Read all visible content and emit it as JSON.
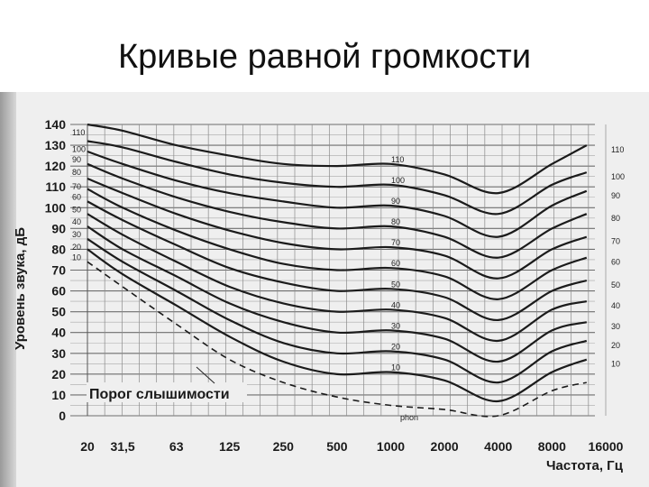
{
  "slide": {
    "title": "Кривые равной громкости"
  },
  "chart_data": {
    "type": "line",
    "title": "",
    "ylabel": "Уровень звука, дБ",
    "xlabel": "Частота, Гц",
    "x_scale": "log",
    "x_ticks": [
      20,
      31.5,
      63,
      125,
      250,
      500,
      1000,
      2000,
      4000,
      8000,
      16000
    ],
    "x_tick_labels": [
      "20",
      "31,5",
      "63",
      "125",
      "250",
      "500",
      "1000",
      "2000",
      "4000",
      "8000",
      "16000"
    ],
    "y_ticks": [
      0,
      10,
      20,
      30,
      40,
      50,
      60,
      70,
      80,
      90,
      100,
      110,
      120,
      130,
      140
    ],
    "y_tick_labels": [
      "0",
      "10",
      "20",
      "30",
      "40",
      "50",
      "60",
      "70",
      "80",
      "90",
      "100",
      "110",
      "120",
      "130",
      "140"
    ],
    "ylim": [
      0,
      140
    ],
    "grid": true,
    "threshold_label": "Порог слышимости",
    "unit_label": "phon",
    "x": [
      20,
      31.5,
      63,
      125,
      250,
      500,
      1000,
      2000,
      4000,
      8000,
      12500
    ],
    "series": [
      {
        "name": "110",
        "values": [
          140,
          137,
          130,
          125,
          121,
          120,
          121,
          116,
          107,
          121,
          130
        ]
      },
      {
        "name": "100",
        "values": [
          132,
          129,
          122,
          116,
          112,
          110,
          111,
          106,
          97,
          111,
          117
        ]
      },
      {
        "name": "90",
        "values": [
          127,
          121,
          113,
          107,
          103,
          100,
          101,
          96,
          86,
          101,
          108
        ]
      },
      {
        "name": "80",
        "values": [
          121,
          114,
          105,
          98,
          93,
          90,
          91,
          86,
          76,
          90,
          97
        ]
      },
      {
        "name": "70",
        "values": [
          114,
          107,
          97,
          89,
          83,
          80,
          81,
          77,
          66,
          80,
          86
        ]
      },
      {
        "name": "60",
        "values": [
          109,
          100,
          89,
          80,
          73,
          70,
          71,
          67,
          56,
          70,
          76
        ]
      },
      {
        "name": "50",
        "values": [
          103,
          94,
          82,
          71,
          64,
          60,
          61,
          57,
          46,
          60,
          65
        ]
      },
      {
        "name": "40",
        "values": [
          97,
          87,
          74,
          62,
          54,
          50,
          51,
          47,
          36,
          51,
          55
        ]
      },
      {
        "name": "30",
        "values": [
          91,
          80,
          67,
          54,
          45,
          40,
          41,
          37,
          26,
          41,
          45
        ]
      },
      {
        "name": "20",
        "values": [
          85,
          74,
          60,
          46,
          35,
          30,
          31,
          27,
          16,
          31,
          36
        ]
      },
      {
        "name": "10",
        "values": [
          80,
          68,
          53,
          38,
          26,
          20,
          21,
          17,
          7,
          21,
          27
        ]
      },
      {
        "name": "Порог слышимости",
        "values": [
          74,
          62,
          44,
          27,
          16,
          9,
          5,
          3,
          0,
          12,
          16
        ]
      }
    ]
  }
}
